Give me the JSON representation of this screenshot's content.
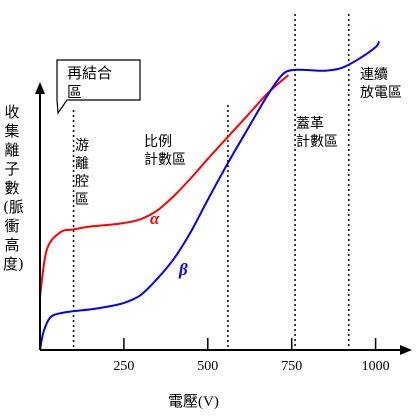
{
  "chart_data": {
    "type": "line",
    "xlabel": "電壓(V)",
    "ylabel": "收集離子數(脈衝高度)",
    "xlim": [
      0,
      1080
    ],
    "ylim": [
      0,
      100
    ],
    "x_ticks": [
      250,
      500,
      750,
      1000
    ],
    "grid": false,
    "series": [
      {
        "name": "α",
        "color": "#ff0000",
        "x": [
          0,
          20,
          60,
          100,
          150,
          200,
          250,
          300,
          350,
          400,
          450,
          500,
          560,
          620,
          680,
          740
        ],
        "y": [
          18,
          34,
          40,
          41,
          42,
          42.5,
          43.2,
          44.5,
          47.5,
          52.5,
          58.5,
          65,
          72.5,
          80,
          87.5,
          93.5
        ]
      },
      {
        "name": "β",
        "color": "#0000ff",
        "x": [
          0,
          10,
          30,
          60,
          100,
          150,
          200,
          250,
          300,
          350,
          400,
          450,
          500,
          560,
          620,
          680,
          720,
          750,
          800,
          850,
          900,
          950,
          1000,
          1010
        ],
        "y": [
          0,
          6,
          11,
          12.5,
          13.2,
          13.8,
          14.7,
          16,
          18.7,
          24.3,
          31.2,
          40.3,
          51.1,
          63.6,
          75.4,
          87,
          93.4,
          95.2,
          95.2,
          95,
          96,
          99,
          103,
          105
        ]
      }
    ],
    "regions": [
      {
        "label": "再結合區",
        "boundary_x": 100
      },
      {
        "label": "游離腔區",
        "boundary_x": 560
      },
      {
        "label": "比例計數區",
        "boundary_x": 760
      },
      {
        "label": "蓋革計數區",
        "boundary_x": 920
      },
      {
        "label": "連續放電區"
      }
    ]
  },
  "labels": {
    "ylabel": "收集離子數(脈衝高度)",
    "xlabel": "電壓(V)",
    "recombination": "再結合\n區",
    "ion_chamber": "游\n離\n腔\n區",
    "proportional": "比例\n計數區",
    "geiger": "蓋革\n計數區",
    "discharge": "連續\n放電區"
  }
}
